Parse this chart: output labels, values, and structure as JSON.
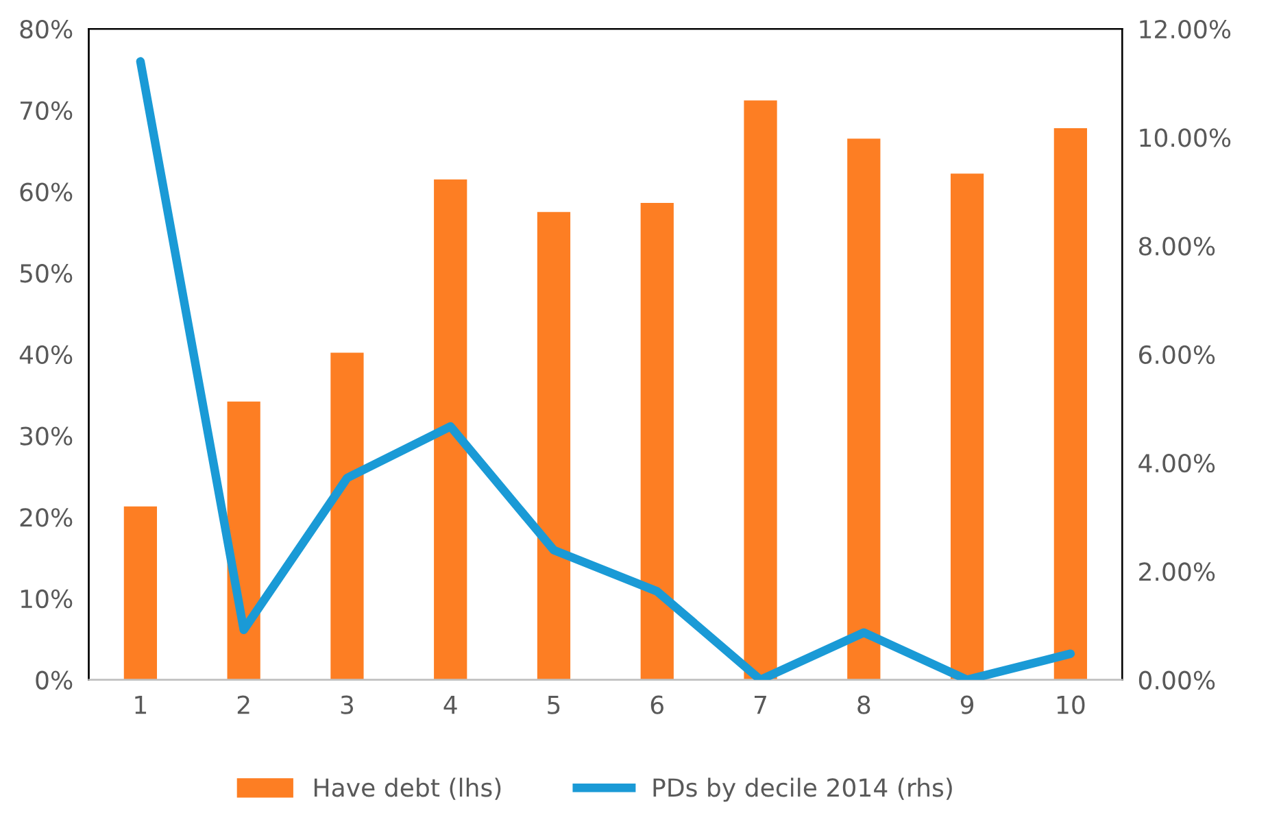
{
  "chart_data": {
    "type": "bar",
    "categories": [
      "1",
      "2",
      "3",
      "4",
      "5",
      "6",
      "7",
      "8",
      "9",
      "10"
    ],
    "series": [
      {
        "name": "Have debt (lhs)",
        "color": "#fd7e23",
        "values": [
          21.3,
          34.2,
          40.2,
          61.5,
          57.5,
          58.6,
          71.2,
          66.5,
          62.2,
          67.8
        ]
      },
      {
        "name": "PDs by decile 2014 (rhs)",
        "type": "line",
        "axis": "y2",
        "color": "#1a9ad6",
        "values": [
          11.4,
          0.92,
          3.72,
          4.67,
          2.39,
          1.63,
          0,
          0.87,
          0,
          0.48
        ]
      }
    ],
    "ylim": [
      0,
      80
    ],
    "yticks": [
      {
        "value": 0,
        "label": "0%"
      },
      {
        "value": 10,
        "label": "10%"
      },
      {
        "value": 20,
        "label": "20%"
      },
      {
        "value": 30,
        "label": "30%"
      },
      {
        "value": 40,
        "label": "40%"
      },
      {
        "value": 50,
        "label": "50%"
      },
      {
        "value": 60,
        "label": "60%"
      },
      {
        "value": 70,
        "label": "70%"
      },
      {
        "value": 80,
        "label": "80%"
      }
    ],
    "y2lim": [
      0,
      12
    ],
    "y2ticks": [
      {
        "value": 0,
        "label": "0.00%"
      },
      {
        "value": 2,
        "label": "2.00%"
      },
      {
        "value": 4,
        "label": "4.00%"
      },
      {
        "value": 6,
        "label": "6.00%"
      },
      {
        "value": 8,
        "label": "8.00%"
      },
      {
        "value": 10,
        "label": "10.00%"
      },
      {
        "value": 12,
        "label": "12.00%"
      }
    ],
    "legend": "bottom"
  }
}
